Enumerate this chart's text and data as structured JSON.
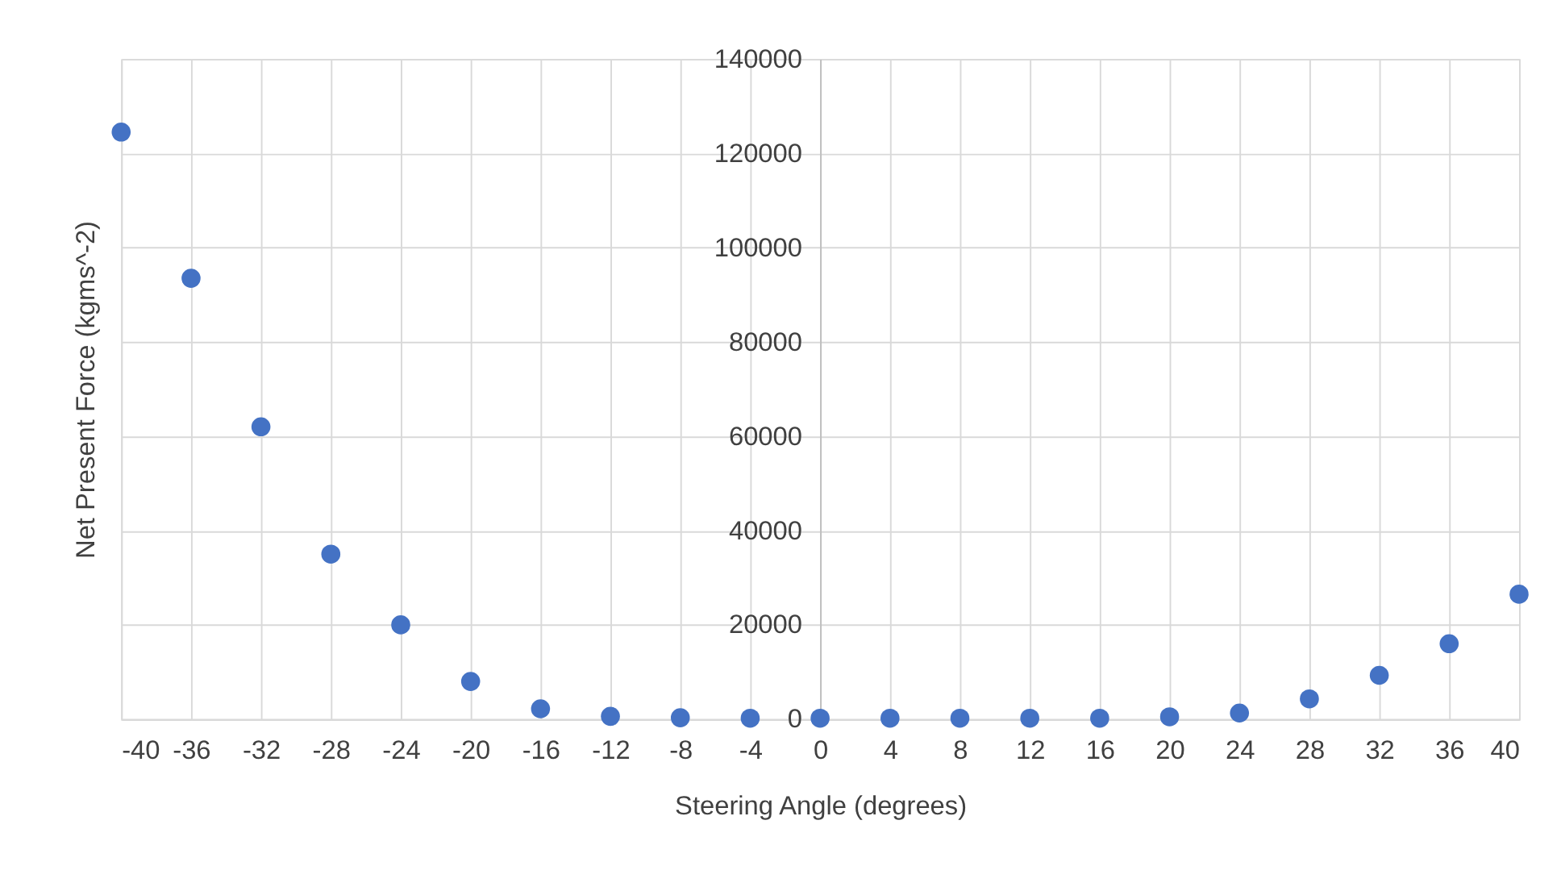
{
  "chart_data": {
    "type": "scatter",
    "xlabel": "Steering Angle (degrees)",
    "ylabel": "Net Present Force (kgms^-2)",
    "x": [
      -40,
      -36,
      -32,
      -28,
      -24,
      -20,
      -16,
      -12,
      -8,
      -4,
      0,
      4,
      8,
      12,
      16,
      20,
      24,
      28,
      32,
      36,
      40
    ],
    "series": [
      {
        "color": "#4472c4",
        "values": [
          124500,
          93500,
          62000,
          35000,
          20000,
          8000,
          2200,
          600,
          300,
          200,
          200,
          200,
          200,
          200,
          200,
          500,
          1300,
          4300,
          9300,
          16000,
          26500
        ]
      }
    ],
    "xlim": [
      -40,
      40
    ],
    "xticks": [
      -40,
      -36,
      -32,
      -28,
      -24,
      -20,
      -16,
      -12,
      -8,
      -4,
      0,
      4,
      8,
      12,
      16,
      20,
      24,
      28,
      32,
      36,
      40
    ],
    "ylim": [
      0,
      140000
    ],
    "yticks": [
      0,
      20000,
      40000,
      60000,
      80000,
      100000,
      120000,
      140000
    ],
    "grid": true,
    "marker": "circle"
  }
}
